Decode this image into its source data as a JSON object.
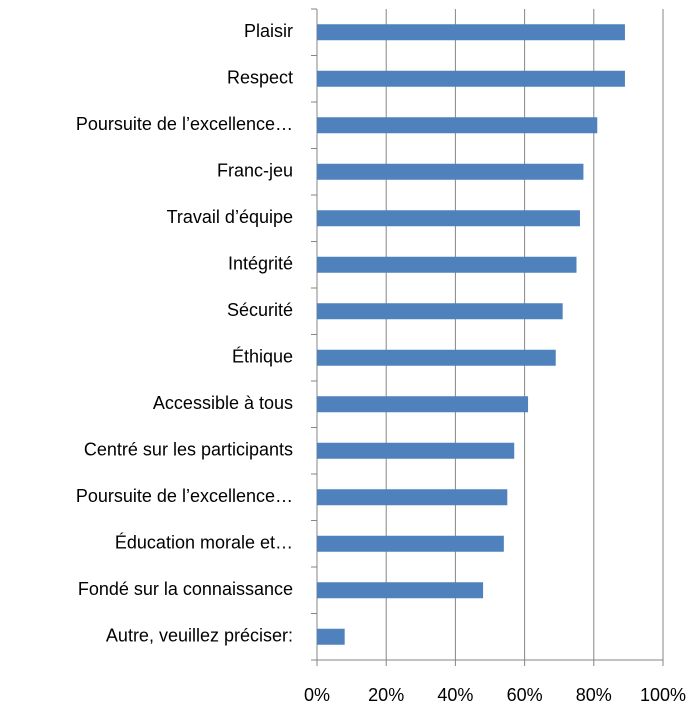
{
  "chart_data": {
    "type": "bar",
    "orientation": "horizontal",
    "categories": [
      "Plaisir",
      "Respect",
      "Poursuite de l’excellence…",
      "Franc-jeu",
      "Travail d’équipe",
      "Intégrité",
      "Sécurité",
      "Éthique",
      "Accessible à tous",
      "Centré sur les participants",
      "Poursuite de l’excellence…",
      "Éducation morale et…",
      "Fondé sur la connaissance",
      "Autre, veuillez préciser:"
    ],
    "values": [
      89,
      89,
      81,
      77,
      76,
      75,
      71,
      69,
      61,
      57,
      55,
      54,
      48,
      8
    ],
    "color": "#4f81bd",
    "xlim": [
      0,
      100
    ],
    "xticks": [
      {
        "value": 0,
        "label": "0%"
      },
      {
        "value": 20,
        "label": "20%"
      },
      {
        "value": 40,
        "label": "40%"
      },
      {
        "value": 60,
        "label": "60%"
      },
      {
        "value": 80,
        "label": "80%"
      },
      {
        "value": 100,
        "label": "100%"
      }
    ],
    "grid": true
  }
}
